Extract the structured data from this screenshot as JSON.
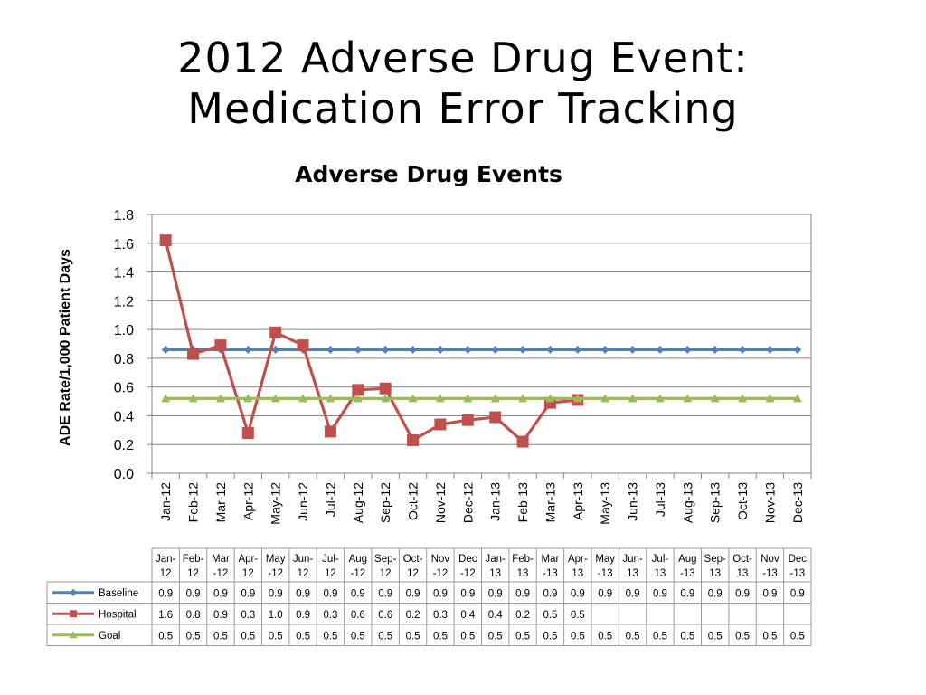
{
  "slide": {
    "title_line1": "2012 Adverse Drug Event:",
    "title_line2": "Medication Error Tracking"
  },
  "chart_data": {
    "type": "line",
    "title": "Adverse Drug Events",
    "ylabel": "ADE Rate/1,000 Patient Days",
    "xlabel": "",
    "ylim": [
      0,
      1.8
    ],
    "yticks": [
      "0.0",
      "0.2",
      "0.4",
      "0.6",
      "0.8",
      "1.0",
      "1.2",
      "1.4",
      "1.6",
      "1.8"
    ],
    "grid": true,
    "categories": [
      "Jan-12",
      "Feb-12",
      "Mar-12",
      "Apr-12",
      "May-12",
      "Jun-12",
      "Jul-12",
      "Aug-12",
      "Sep-12",
      "Oct-12",
      "Nov-12",
      "Dec-12",
      "Jan-13",
      "Feb-13",
      "Mar-13",
      "Apr-13",
      "May-13",
      "Jun-13",
      "Jul-13",
      "Aug-13",
      "Sep-13",
      "Oct-13",
      "Nov-13",
      "Dec-13"
    ],
    "table_headers": [
      [
        "Jan-",
        "12"
      ],
      [
        "Feb-",
        "12"
      ],
      [
        "Mar",
        "-12"
      ],
      [
        "Apr-",
        "12"
      ],
      [
        "May",
        "-12"
      ],
      [
        "Jun-",
        "12"
      ],
      [
        "Jul-",
        "12"
      ],
      [
        "Aug",
        "-12"
      ],
      [
        "Sep-",
        "12"
      ],
      [
        "Oct-",
        "12"
      ],
      [
        "Nov",
        "-12"
      ],
      [
        "Dec",
        "-12"
      ],
      [
        "Jan-",
        "13"
      ],
      [
        "Feb-",
        "13"
      ],
      [
        "Mar",
        "-13"
      ],
      [
        "Apr-",
        "13"
      ],
      [
        "May",
        "-13"
      ],
      [
        "Jun-",
        "13"
      ],
      [
        "Jul-",
        "13"
      ],
      [
        "Aug",
        "-13"
      ],
      [
        "Sep-",
        "13"
      ],
      [
        "Oct-",
        "13"
      ],
      [
        "Nov",
        "-13"
      ],
      [
        "Dec",
        "-13"
      ]
    ],
    "series": [
      {
        "name": "Baseline",
        "color": "#4F81BD",
        "marker": "diamond",
        "values": [
          0.86,
          0.86,
          0.86,
          0.86,
          0.86,
          0.86,
          0.86,
          0.86,
          0.86,
          0.86,
          0.86,
          0.86,
          0.86,
          0.86,
          0.86,
          0.86,
          0.86,
          0.86,
          0.86,
          0.86,
          0.86,
          0.86,
          0.86,
          0.86
        ],
        "table": [
          "0.9",
          "0.9",
          "0.9",
          "0.9",
          "0.9",
          "0.9",
          "0.9",
          "0.9",
          "0.9",
          "0.9",
          "0.9",
          "0.9",
          "0.9",
          "0.9",
          "0.9",
          "0.9",
          "0.9",
          "0.9",
          "0.9",
          "0.9",
          "0.9",
          "0.9",
          "0.9",
          "0.9"
        ]
      },
      {
        "name": "Hospital",
        "color": "#C0504D",
        "marker": "square",
        "values": [
          1.62,
          0.83,
          0.89,
          0.28,
          0.98,
          0.89,
          0.29,
          0.58,
          0.59,
          0.23,
          0.34,
          0.37,
          0.39,
          0.22,
          0.49,
          0.51,
          null,
          null,
          null,
          null,
          null,
          null,
          null,
          null
        ],
        "table": [
          "1.6",
          "0.8",
          "0.9",
          "0.3",
          "1.0",
          "0.9",
          "0.3",
          "0.6",
          "0.6",
          "0.2",
          "0.3",
          "0.4",
          "0.4",
          "0.2",
          "0.5",
          "0.5",
          "",
          "",
          "",
          "",
          "",
          "",
          "",
          ""
        ]
      },
      {
        "name": "Goal",
        "color": "#9BBB59",
        "marker": "triangle",
        "values": [
          0.52,
          0.52,
          0.52,
          0.52,
          0.52,
          0.52,
          0.52,
          0.52,
          0.52,
          0.52,
          0.52,
          0.52,
          0.52,
          0.52,
          0.52,
          0.52,
          0.52,
          0.52,
          0.52,
          0.52,
          0.52,
          0.52,
          0.52,
          0.52
        ],
        "table": [
          "0.5",
          "0.5",
          "0.5",
          "0.5",
          "0.5",
          "0.5",
          "0.5",
          "0.5",
          "0.5",
          "0.5",
          "0.5",
          "0.5",
          "0.5",
          "0.5",
          "0.5",
          "0.5",
          "0.5",
          "0.5",
          "0.5",
          "0.5",
          "0.5",
          "0.5",
          "0.5",
          "0.5"
        ]
      }
    ]
  }
}
